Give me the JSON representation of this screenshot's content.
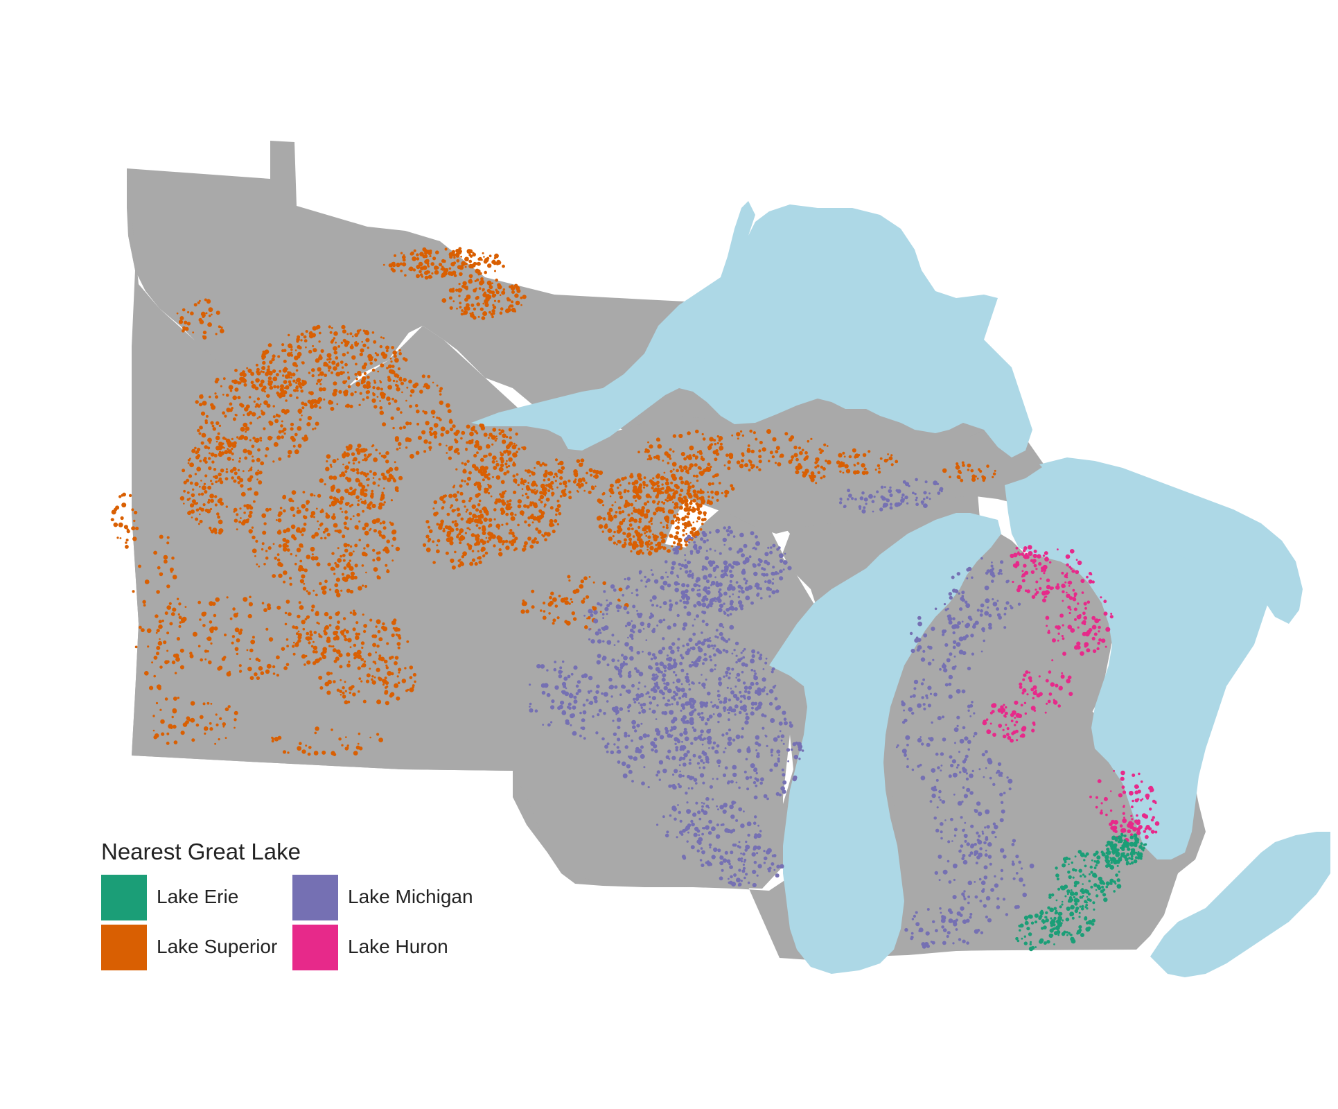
{
  "map": {
    "colors": {
      "land": "#a9a9a9",
      "water": "#add8e6",
      "background": "#ffffff"
    }
  },
  "legend": {
    "title": "Nearest Great Lake",
    "items": [
      {
        "label": "Lake Erie",
        "color": "#1b9e77"
      },
      {
        "label": "Lake Michigan",
        "color": "#7570b3"
      },
      {
        "label": "Lake Superior",
        "color": "#d95f02"
      },
      {
        "label": "Lake Huron",
        "color": "#e7298a"
      }
    ]
  }
}
